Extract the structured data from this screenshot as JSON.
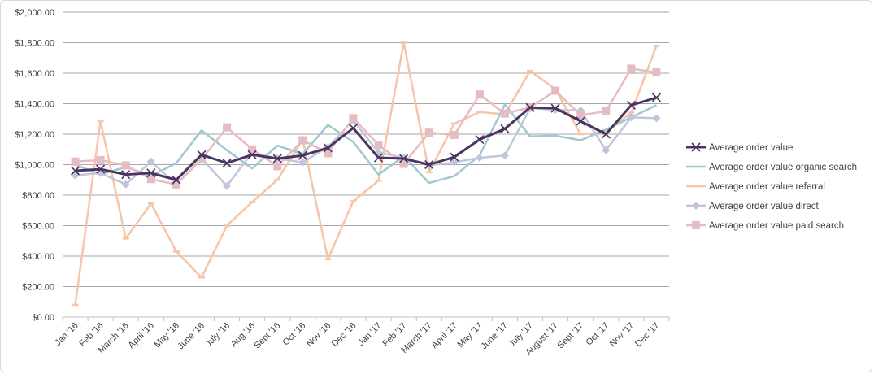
{
  "chart_data": {
    "type": "line",
    "title": "",
    "xlabel": "",
    "ylabel": "",
    "ylim": [
      0,
      2000
    ],
    "y_ticks": [
      "$0.00",
      "$200.00",
      "$400.00",
      "$600.00",
      "$800.00",
      "$1,000.00",
      "$1,200.00",
      "$1,400.00",
      "$1,600.00",
      "$1,800.00",
      "$2,000.00"
    ],
    "y_tick_values": [
      0,
      200,
      400,
      600,
      800,
      1000,
      1200,
      1400,
      1600,
      1800,
      2000
    ],
    "categories": [
      "Jan '16",
      "Feb '16",
      "March '16",
      "April '16",
      "May '16",
      "June '16",
      "July '16",
      "Aug '16",
      "Sept '16",
      "Oct '16",
      "Nov '16",
      "Dec '16",
      "Jan '17",
      "Feb '17",
      "March '17",
      "April '17",
      "May '17",
      "June '17",
      "July '17",
      "August '17",
      "Sept '17",
      "Oct '17",
      "Nov '17",
      "Dec '17"
    ],
    "grid": true,
    "legend_position": "right",
    "series": [
      {
        "name": "Average order value",
        "color": "#4a3560",
        "marker": "x",
        "values": [
          960,
          970,
          935,
          945,
          900,
          1065,
          1010,
          1065,
          1040,
          1060,
          1110,
          1240,
          1045,
          1040,
          1000,
          1050,
          1165,
          1235,
          1375,
          1370,
          1285,
          1200,
          1390,
          1440
        ]
      },
      {
        "name": "Average order value organic search",
        "color": "#9fc8cf",
        "marker": "none",
        "values": [
          1000,
          935,
          985,
          925,
          1010,
          1225,
          1095,
          975,
          1125,
          1070,
          1260,
          1150,
          935,
          1055,
          880,
          925,
          1060,
          1395,
          1185,
          1190,
          1160,
          1230,
          1310,
          1390
        ]
      },
      {
        "name": "Average order value referral",
        "color": "#f6c4a6",
        "marker": "dash",
        "values": [
          80,
          1285,
          515,
          745,
          430,
          260,
          600,
          755,
          900,
          1165,
          380,
          760,
          895,
          1800,
          950,
          1270,
          1345,
          1330,
          1615,
          1495,
          1200,
          1215,
          1340,
          1780
        ]
      },
      {
        "name": "Average order value direct",
        "color": "#bfc6dc",
        "marker": "diamond",
        "values": [
          930,
          945,
          870,
          1020,
          870,
          1040,
          860,
          1080,
          1040,
          1015,
          1115,
          1290,
          1080,
          1045,
          995,
          1015,
          1045,
          1060,
          1370,
          1360,
          1355,
          1095,
          1310,
          1305
        ]
      },
      {
        "name": "Average order value paid search",
        "color": "#e6bcc3",
        "marker": "square",
        "values": [
          1020,
          1030,
          995,
          905,
          870,
          1035,
          1245,
          1100,
          990,
          1160,
          1075,
          1305,
          1130,
          1005,
          1210,
          1195,
          1460,
          1335,
          1375,
          1485,
          1325,
          1350,
          1630,
          1605
        ]
      }
    ]
  }
}
